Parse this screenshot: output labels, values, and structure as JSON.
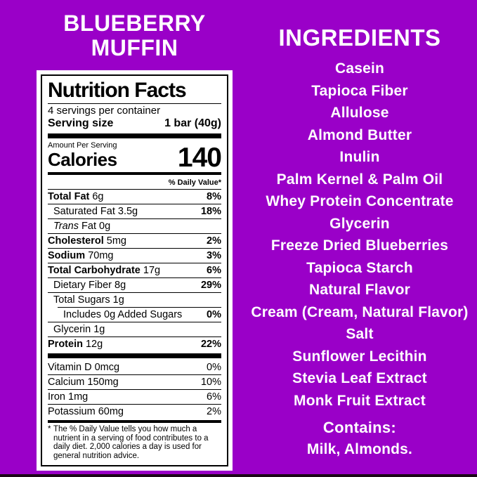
{
  "colors": {
    "background": "#9A00C8",
    "text_light": "#FFFFFF",
    "label_background": "#FFFFFF",
    "label_text": "#000000",
    "bottom_edge": "#1C0618"
  },
  "product": {
    "title_line1": "BLUEBERRY",
    "title_line2": "MUFFIN"
  },
  "nutrition_label": {
    "title": "Nutrition Facts",
    "servings_per_container": "4 servings per container",
    "serving_size_label": "Serving size",
    "serving_size_value": "1 bar (40g)",
    "amount_per_serving": "Amount Per Serving",
    "calories_label": "Calories",
    "calories_value": "140",
    "daily_value_header": "% Daily Value*",
    "nutrient_rows": [
      {
        "name": "Total Fat",
        "amount": "6g",
        "dv": "8%",
        "name_bold": true,
        "dv_bold": true,
        "indent": 0
      },
      {
        "name": "Saturated Fat",
        "amount": "3.5g",
        "dv": "18%",
        "name_bold": false,
        "dv_bold": true,
        "indent": 1
      },
      {
        "italic_prefix": "Trans",
        "name": "Fat",
        "amount": "0g",
        "dv": "",
        "name_bold": false,
        "dv_bold": false,
        "indent": 1
      },
      {
        "name": "Cholesterol",
        "amount": "5mg",
        "dv": "2%",
        "name_bold": true,
        "dv_bold": true,
        "indent": 0
      },
      {
        "name": "Sodium",
        "amount": "70mg",
        "dv": "3%",
        "name_bold": true,
        "dv_bold": true,
        "indent": 0
      },
      {
        "name": "Total Carbohydrate",
        "amount": "17g",
        "dv": "6%",
        "name_bold": true,
        "dv_bold": true,
        "indent": 0
      },
      {
        "name": "Dietary Fiber",
        "amount": "8g",
        "dv": "29%",
        "name_bold": false,
        "dv_bold": true,
        "indent": 1
      },
      {
        "name": "Total Sugars",
        "amount": "1g",
        "dv": "",
        "name_bold": false,
        "dv_bold": false,
        "indent": 1
      },
      {
        "name": "Includes 0g Added Sugars",
        "amount": "",
        "dv": "0%",
        "name_bold": false,
        "dv_bold": true,
        "indent": 2
      },
      {
        "name": "Glycerin",
        "amount": "1g",
        "dv": "",
        "name_bold": false,
        "dv_bold": false,
        "indent": 1
      },
      {
        "name": "Protein",
        "amount": "12g",
        "dv": "22%",
        "name_bold": true,
        "dv_bold": true,
        "indent": 0
      }
    ],
    "vitamin_rows": [
      {
        "name": "Vitamin D",
        "amount": "0mcg",
        "dv": "0%"
      },
      {
        "name": "Calcium",
        "amount": "150mg",
        "dv": "10%"
      },
      {
        "name": "Iron",
        "amount": "1mg",
        "dv": "6%"
      },
      {
        "name": "Potassium",
        "amount": "60mg",
        "dv": "2%"
      }
    ],
    "footnote_marker": "*",
    "footnote_text": "The % Daily Value tells you how much a nutrient in a serving of food contributes to a daily diet. 2,000 calories a day is used for general nutrition advice."
  },
  "ingredients": {
    "heading": "INGREDIENTS",
    "items": [
      "Casein",
      "Tapioca Fiber",
      "Allulose",
      "Almond Butter",
      "Inulin",
      "Palm Kernel & Palm Oil",
      "Whey Protein Concentrate",
      "Glycerin",
      "Freeze Dried Blueberries",
      "Tapioca Starch",
      "Natural Flavor",
      "Cream (Cream, Natural Flavor)",
      "Salt",
      "Sunflower Lecithin",
      "Stevia Leaf Extract",
      "Monk Fruit Extract"
    ],
    "contains_label": "Contains:",
    "contains_value": "Milk, Almonds."
  }
}
